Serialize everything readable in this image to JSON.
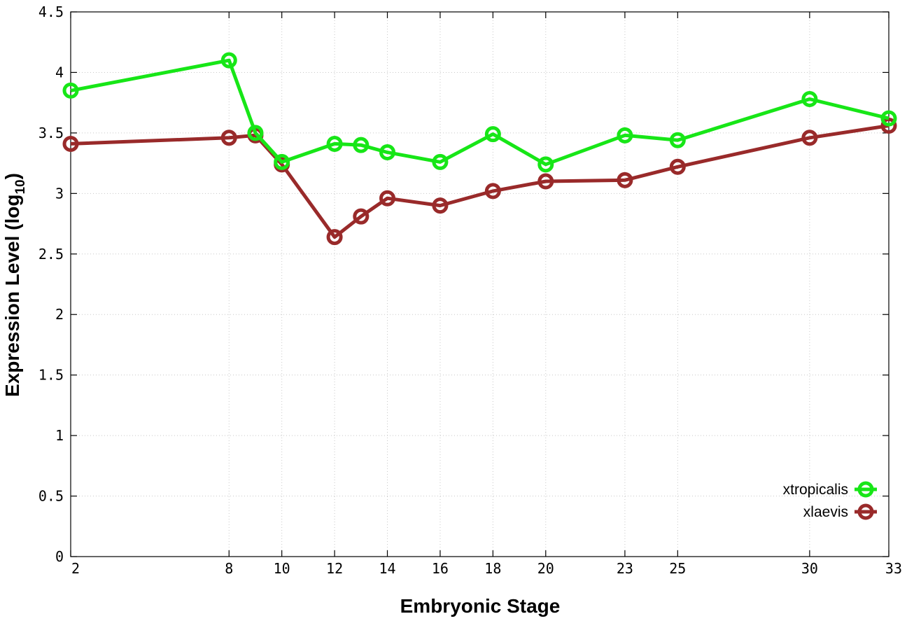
{
  "chart_data": {
    "type": "line",
    "xlabel": "Embryonic Stage",
    "ylabel_main": "Expression Level (log",
    "ylabel_sub": "10",
    "ylabel_end": ")",
    "x": [
      2,
      8,
      9,
      10,
      12,
      13,
      14,
      16,
      18,
      20,
      23,
      25,
      30,
      33
    ],
    "x_ticks": [
      "2",
      "8",
      "10",
      "12",
      "14",
      "16",
      "18",
      "20",
      "23",
      "25",
      "30",
      "33"
    ],
    "y_ticks": [
      "0",
      "0.5",
      "1",
      "1.5",
      "2",
      "2.5",
      "3",
      "3.5",
      "4",
      "4.5"
    ],
    "ylim": [
      0,
      4.5
    ],
    "xlim": [
      2,
      33
    ],
    "grid": true,
    "legend_position": "bottom-right",
    "series": [
      {
        "name": "xtropicalis",
        "color": "#17e617",
        "values": [
          3.85,
          4.1,
          3.5,
          3.26,
          3.41,
          3.4,
          3.34,
          3.26,
          3.49,
          3.24,
          3.48,
          3.44,
          3.78,
          3.62
        ]
      },
      {
        "name": "xlaevis",
        "color": "#992a2a",
        "values": [
          3.41,
          3.46,
          3.48,
          3.24,
          2.64,
          2.81,
          2.96,
          2.9,
          3.02,
          3.1,
          3.11,
          3.22,
          3.46,
          3.56
        ]
      }
    ]
  }
}
